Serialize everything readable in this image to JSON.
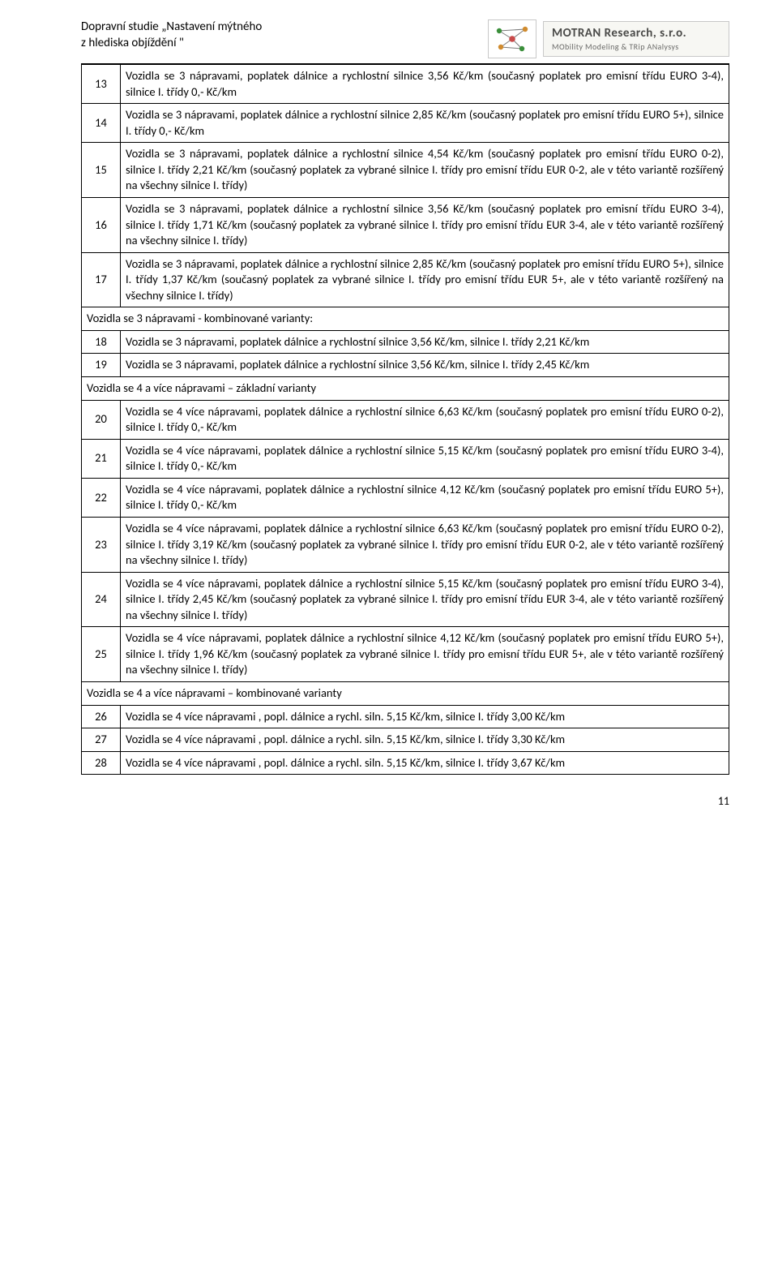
{
  "header": {
    "title_l1": "Dopravní studie „Nastavení mýtného",
    "title_l2": "z hlediska  objíždění \"",
    "company_name": "MOTRAN Research, s.r.o.",
    "company_tag": "MObility Modeling & TRip ANalysys"
  },
  "rows": [
    {
      "num": "13",
      "text": "Vozidla se 3 nápravami, poplatek dálnice a rychlostní silnice 3,56 Kč/km (současný poplatek pro emisní třídu EURO 3-4), silnice I. třídy 0,- Kč/km"
    },
    {
      "num": "14",
      "text": "Vozidla se 3 nápravami, poplatek dálnice a rychlostní silnice 2,85 Kč/km (současný poplatek pro emisní třídu EURO 5+), silnice I. třídy 0,- Kč/km"
    },
    {
      "num": "15",
      "text": "Vozidla se 3 nápravami, poplatek dálnice a rychlostní silnice 4,54 Kč/km (současný poplatek pro emisní třídu EURO 0-2), silnice I. třídy 2,21 Kč/km (současný poplatek za vybrané silnice I. třídy pro emisní třídu EUR 0-2, ale v této variantě rozšířený na všechny silnice I. třídy)"
    },
    {
      "num": "16",
      "text": "Vozidla se 3 nápravami, poplatek dálnice a rychlostní silnice 3,56 Kč/km (současný poplatek pro emisní třídu EURO 3-4), silnice I. třídy 1,71 Kč/km (současný poplatek za vybrané silnice I. třídy pro emisní třídu EUR 3-4, ale v této variantě rozšířený na všechny silnice I. třídy)"
    },
    {
      "num": "17",
      "text": "Vozidla se 3 nápravami, poplatek dálnice a rychlostní silnice 2,85 Kč/km (současný poplatek pro emisní třídu EURO 5+), silnice I. třídy 1,37 Kč/km (současný poplatek za vybrané silnice I. třídy pro emisní třídu EUR 5+, ale v této variantě rozšířený na všechny silnice I. třídy)"
    },
    {
      "section": true,
      "text": "Vozidla se 3 nápravami - kombinované varianty:"
    },
    {
      "num": "18",
      "text": "Vozidla se 3 nápravami, poplatek dálnice a rychlostní silnice 3,56 Kč/km, silnice I. třídy 2,21 Kč/km"
    },
    {
      "num": "19",
      "text": "Vozidla se 3 nápravami, poplatek dálnice a rychlostní silnice 3,56 Kč/km, silnice I. třídy 2,45 Kč/km"
    },
    {
      "section": true,
      "text": "Vozidla se 4 a více nápravami – základní varianty"
    },
    {
      "num": "20",
      "text": "Vozidla se 4  více nápravami, poplatek dálnice a rychlostní silnice 6,63 Kč/km (současný poplatek pro emisní třídu EURO 0-2), silnice I. třídy 0,- Kč/km"
    },
    {
      "num": "21",
      "text": "Vozidla se 4  více nápravami, poplatek dálnice a rychlostní silnice 5,15 Kč/km (současný poplatek pro emisní třídu EURO 3-4), silnice I. třídy 0,- Kč/km"
    },
    {
      "num": "22",
      "text": "Vozidla se 4  více nápravami, poplatek dálnice a rychlostní silnice 4,12 Kč/km (současný poplatek pro emisní třídu EURO 5+), silnice I. třídy 0,- Kč/km"
    },
    {
      "num": "23",
      "text": "Vozidla se 4  více nápravami, poplatek dálnice a rychlostní silnice 6,63 Kč/km (současný poplatek pro emisní třídu EURO 0-2), silnice I. třídy 3,19 Kč/km (současný poplatek za vybrané silnice I. třídy pro emisní třídu EUR 0-2, ale v této variantě rozšířený na všechny silnice I. třídy)"
    },
    {
      "num": "24",
      "text": "Vozidla se 4  více nápravami, poplatek dálnice a rychlostní silnice 5,15 Kč/km (současný poplatek pro emisní třídu EURO 3-4), silnice I. třídy 2,45 Kč/km (současný poplatek za vybrané silnice I. třídy pro emisní třídu EUR 3-4, ale v této variantě rozšířený na všechny silnice I. třídy)"
    },
    {
      "num": "25",
      "text": "Vozidla se 4  více nápravami, poplatek dálnice a rychlostní silnice 4,12 Kč/km (současný poplatek pro emisní třídu EURO 5+), silnice I. třídy 1,96 Kč/km (současný poplatek za vybrané silnice I. třídy pro emisní třídu EUR 5+, ale v této variantě rozšířený na všechny silnice I. třídy)"
    },
    {
      "section": true,
      "text": "Vozidla se 4 a více nápravami – kombinované varianty"
    },
    {
      "num": "26",
      "text": "Vozidla se 4  více nápravami , popl. dálnice a rychl. siln. 5,15 Kč/km, silnice I. třídy 3,00 Kč/km"
    },
    {
      "num": "27",
      "text": "Vozidla se 4  více nápravami , popl. dálnice a rychl. siln. 5,15 Kč/km, silnice I. třídy 3,30 Kč/km"
    },
    {
      "num": "28",
      "text": "Vozidla se 4  více nápravami , popl. dálnice a rychl. siln. 5,15 Kč/km, silnice I. třídy 3,67 Kč/km"
    }
  ],
  "page_number": "11",
  "logo": {
    "node_color_a": "#3a8f3a",
    "node_color_b": "#d08b2e",
    "node_color_c": "#c94a4a",
    "edge_color": "#7a7a7a"
  }
}
